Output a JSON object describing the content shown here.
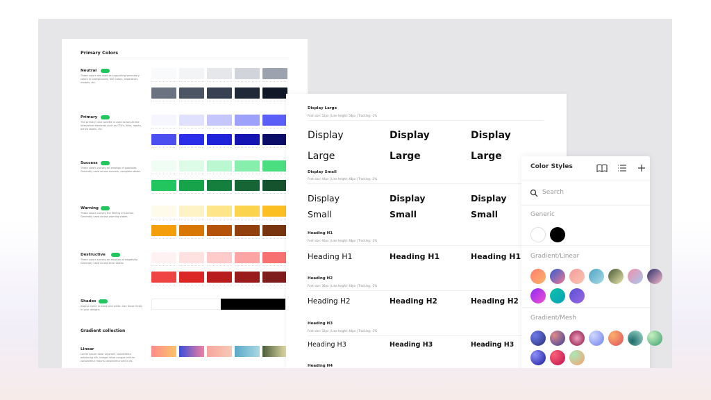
{
  "primary_colors": {
    "title": "Primary Colors",
    "sections": [
      {
        "name": "Neutral",
        "description": "These colors are used as supporting secondary colors in backgrounds, text colors, separators, models, etc.",
        "swatches": [
          [
            "#f9fafb",
            "#f3f4f6",
            "#e5e7eb",
            "#d1d5db",
            "#9ca3af"
          ],
          [
            "#6b7280",
            "#4b5563",
            "#374151",
            "#1f2937",
            "#111827"
          ]
        ]
      },
      {
        "name": "Primary",
        "description": "The primary color palette is used across all the interactive elements such as CTA's, links, inputs, active states, etc.",
        "swatches": [
          [
            "#f5f6ff",
            "#e0e1fd",
            "#c4c6fc",
            "#9ea1fa",
            "#5b5ef7"
          ],
          [
            "#4c4ff0",
            "#2b2ee8",
            "#1e22d9",
            "#1414b3",
            "#0c0d66"
          ]
        ]
      },
      {
        "name": "Success",
        "description": "These colors convey an emotion of positivity. Generally used across success, complete states.",
        "swatches": [
          [
            "#f0fdf4",
            "#dcfce7",
            "#bbf7d0",
            "#86efac",
            "#4ade80"
          ],
          [
            "#22c55e",
            "#16a34a",
            "#15803d",
            "#166534",
            "#14532d"
          ]
        ]
      },
      {
        "name": "Warning",
        "description": "These colors convey the feeling of caution. Generally used across warning states.",
        "swatches": [
          [
            "#fffbeb",
            "#fef3c7",
            "#fde68a",
            "#fcd34d",
            "#fbbf24"
          ],
          [
            "#f59e0b",
            "#d97706",
            "#b45309",
            "#92400e",
            "#78350f"
          ]
        ]
      },
      {
        "name": "Destructive",
        "description": "These colors convey an emotion of negativity. Generally used across error states.",
        "swatches": [
          [
            "#fef2f2",
            "#fee2e2",
            "#fecaca",
            "#fca5a5",
            "#f87171"
          ],
          [
            "#ef4444",
            "#dc2626",
            "#b91c1c",
            "#991b1b",
            "#7f1d1d"
          ]
        ]
      },
      {
        "name": "Shades",
        "description": "Always come in black and white. Use these freely in your designs.",
        "swatches": [
          [
            "#ffffff",
            "#000000"
          ]
        ]
      }
    ]
  },
  "gradient_collection": {
    "title": "Gradient collection",
    "linear": {
      "name": "Linear",
      "description": "Lorem ipsum dolor sit amet, consectetur adipiscing elit. Integer vitae congue rutrum consectetur mauris consectetur sed in ex.",
      "swatches": [
        "linear-gradient(90deg,#fd8c8c,#fbc26a)",
        "linear-gradient(90deg,#3a4fd8,#f07fa2)",
        "linear-gradient(90deg,#f6a6a0,#f8c9b4)",
        "linear-gradient(90deg,#5aa8c8,#a9d8e4)",
        "linear-gradient(90deg,#4a5c3a,#e8e0a8)"
      ]
    }
  },
  "typography": {
    "sections": [
      {
        "title": "Display Large",
        "spec": "Font size: 52px | Line height: 56px | Tracking: -2%",
        "sample": "Display Large"
      },
      {
        "title": "Display Small",
        "spec": "Font size: 44px | Line height: 48px | Tracking: -2%",
        "sample": "Display Small"
      },
      {
        "title": "Heading H1",
        "spec": "Font size: 40px | Line height: 48px | Tracking: -2%",
        "sample": "Heading H1"
      },
      {
        "title": "Heading H2",
        "spec": "Font size: 36px | Line height: 44px | Tracking: -2%",
        "sample": "Heading H2"
      },
      {
        "title": "Heading H3",
        "spec": "Font size: 32px | Line height: 40px | Tracking: -2%",
        "sample": "Heading H3"
      },
      {
        "title": "Heading H4",
        "spec": "",
        "sample": ""
      }
    ]
  },
  "color_styles": {
    "title": "Color Styles",
    "search_placeholder": "Search",
    "groups": [
      {
        "name": "Generic",
        "swatches": [
          "#ffffff",
          "#000000"
        ]
      },
      {
        "name": "Gradient/Linear",
        "swatches": [
          "linear-gradient(135deg,#fd7f6f,#fbb36b)",
          "linear-gradient(135deg,#2f5bd3,#f27b8e)",
          "linear-gradient(135deg,#f59b9b,#f9c7b0)",
          "linear-gradient(135deg,#4fa3c4,#a8dbe6)",
          "linear-gradient(135deg,#455a35,#ede6ad)",
          "linear-gradient(135deg,#f08fa8,#a9c7f0)",
          "linear-gradient(135deg,#2b2f6b,#f5b9c8)",
          "linear-gradient(135deg,#8b2cf5,#f54fd0)",
          "linear-gradient(135deg,#0cc4a6,#0a9fb8)",
          "linear-gradient(135deg,#5a4fd8,#9b6ae0)"
        ]
      },
      {
        "name": "Gradient/Mesh",
        "swatches": [
          "radial-gradient(circle at 30% 30%,#6c7be8,#2a2f7a)",
          "radial-gradient(circle at 30% 30%,#e08a8a,#3a3f9a)",
          "radial-gradient(circle at 50% 50%,#f0a0c0,#8a1040)",
          "radial-gradient(circle at 30% 30%,#cfd8ff,#6f7fe8)",
          "radial-gradient(circle at 30% 30%,#fbb06b,#e0505f)",
          "radial-gradient(circle at 30% 70%,#1a6a6a,#a8e0d0)",
          "radial-gradient(circle at 30% 30%,#c8f0c0,#3ea070)",
          "radial-gradient(circle at 30% 30%,#8f8ff8,#1a1aa0)",
          "radial-gradient(circle at 30% 30%,#f8607a,#c0104a)",
          "radial-gradient(circle at 30% 30%,#a8e8b8,#fba070)"
        ]
      }
    ]
  }
}
